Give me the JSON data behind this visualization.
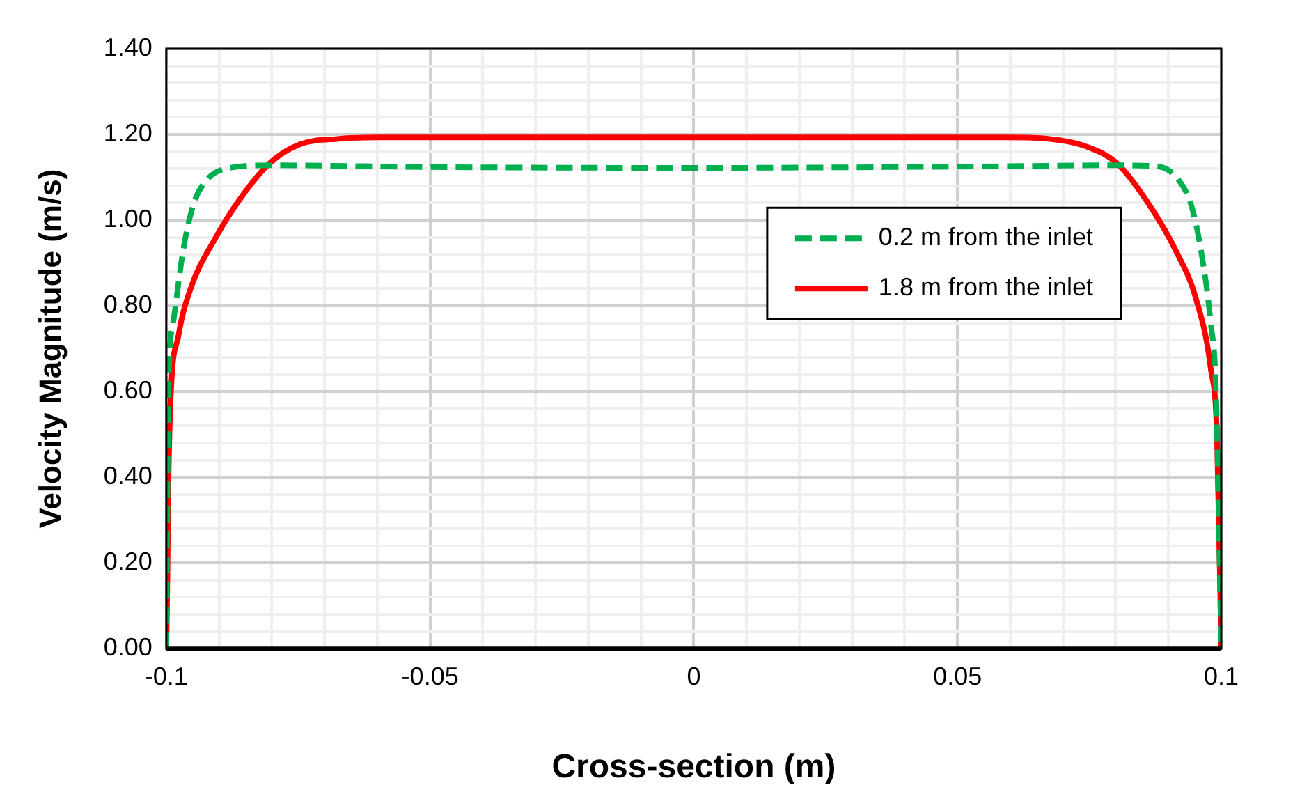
{
  "chart_data": {
    "type": "line",
    "xlabel": "Cross-section (m)",
    "ylabel": "Velocity Magnitude (m/s)",
    "xlim": [
      -0.1,
      0.1
    ],
    "xticks": [
      -0.1,
      {
        "value": -0.09,
        "label": null
      },
      {
        "value": -0.08,
        "label": null
      },
      {
        "value": -0.07,
        "label": null
      },
      {
        "value": -0.06,
        "label": null
      },
      -0.05,
      {
        "value": -0.04,
        "label": null
      },
      {
        "value": -0.03,
        "label": null
      },
      {
        "value": -0.02,
        "label": null
      },
      {
        "value": -0.01,
        "label": null
      },
      0,
      {
        "value": 0.01,
        "label": null
      },
      {
        "value": 0.02,
        "label": null
      },
      {
        "value": 0.03,
        "label": null
      },
      {
        "value": 0.04,
        "label": null
      },
      0.05,
      {
        "value": 0.06,
        "label": null
      },
      {
        "value": 0.07,
        "label": null
      },
      {
        "value": 0.08,
        "label": null
      },
      {
        "value": 0.09,
        "label": null
      },
      0.1
    ],
    "ylim": [
      0,
      1.4
    ],
    "yticks": [
      {
        "value": 0,
        "label": "0.00"
      },
      {
        "value": 0.04,
        "label": null
      },
      {
        "value": 0.08,
        "label": null
      },
      {
        "value": 0.12,
        "label": null
      },
      {
        "value": 0.16,
        "label": null
      },
      {
        "value": 0.2,
        "label": "0.20"
      },
      {
        "value": 0.24,
        "label": null
      },
      {
        "value": 0.28,
        "label": null
      },
      {
        "value": 0.32,
        "label": null
      },
      {
        "value": 0.36,
        "label": null
      },
      {
        "value": 0.4,
        "label": "0.40"
      },
      {
        "value": 0.44,
        "label": null
      },
      {
        "value": 0.48,
        "label": null
      },
      {
        "value": 0.52,
        "label": null
      },
      {
        "value": 0.56,
        "label": null
      },
      {
        "value": 0.6,
        "label": "0.60"
      },
      {
        "value": 0.64,
        "label": null
      },
      {
        "value": 0.68,
        "label": null
      },
      {
        "value": 0.72,
        "label": null
      },
      {
        "value": 0.76,
        "label": null
      },
      {
        "value": 0.8,
        "label": "0.80"
      },
      {
        "value": 0.84,
        "label": null
      },
      {
        "value": 0.88,
        "label": null
      },
      {
        "value": 0.92,
        "label": null
      },
      {
        "value": 0.96,
        "label": null
      },
      {
        "value": 1.0,
        "label": "1.00"
      },
      {
        "value": 1.04,
        "label": null
      },
      {
        "value": 1.08,
        "label": null
      },
      {
        "value": 1.12,
        "label": null
      },
      {
        "value": 1.16,
        "label": null
      },
      {
        "value": 1.2,
        "label": "1.20"
      },
      {
        "value": 1.24,
        "label": null
      },
      {
        "value": 1.28,
        "label": null
      },
      {
        "value": 1.32,
        "label": null
      },
      {
        "value": 1.36,
        "label": null
      },
      {
        "value": 1.4,
        "label": "1.40"
      }
    ],
    "grid": true,
    "legend": "right",
    "marker": "none",
    "series": [
      {
        "name": "0.2 m from the inlet",
        "color": "#00b050",
        "line_style": "dashed",
        "x": [
          -0.1,
          -0.0996,
          -0.0987,
          -0.0968,
          -0.0949,
          -0.0926,
          -0.0888,
          -0.08,
          -0.05,
          0,
          0.05,
          0.08,
          0.0877,
          0.0915,
          0.0943,
          0.0962,
          0.098,
          0.099,
          0.1
        ],
        "values": [
          0,
          0.6,
          0.76,
          0.93,
          1.035,
          1.09,
          1.12,
          1.128,
          1.124,
          1.122,
          1.125,
          1.128,
          1.126,
          1.1,
          1.035,
          0.926,
          0.76,
          0.6,
          0
        ]
      },
      {
        "name": "1.8 m from the inlet",
        "color": "#ff0000",
        "line_style": "solid",
        "x": [
          -0.1,
          -0.0998,
          -0.0996,
          -0.0992,
          -0.0977,
          -0.0954,
          -0.0907,
          -0.086,
          -0.0804,
          -0.0747,
          -0.0672,
          -0.06,
          0,
          0.06,
          0.0672,
          0.0746,
          0.0802,
          0.0858,
          0.0915,
          0.0952,
          0.098,
          0.0992,
          0.1
        ],
        "values": [
          0,
          0.16,
          0.38,
          0.577,
          0.73,
          0.84,
          0.958,
          1.05,
          1.133,
          1.177,
          1.19,
          1.193,
          1.193,
          1.193,
          1.19,
          1.171,
          1.133,
          1.046,
          0.926,
          0.817,
          0.654,
          0.49,
          0
        ]
      }
    ]
  }
}
